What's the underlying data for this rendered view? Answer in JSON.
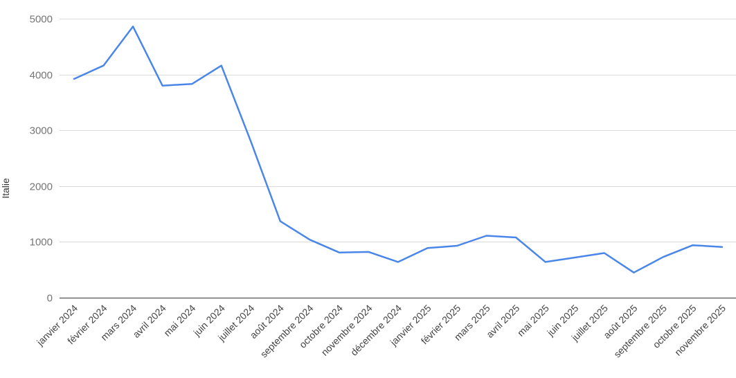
{
  "chart_data": {
    "type": "line",
    "title": "",
    "xlabel": "",
    "ylabel": "Italie",
    "ylim": [
      0,
      5000
    ],
    "yticks": [
      0,
      1000,
      2000,
      3000,
      4000,
      5000
    ],
    "grid": true,
    "legend": "none",
    "categories": [
      "janvier 2024",
      "février 2024",
      "mars 2024",
      "avril 2024",
      "mai 2024",
      "juin 2024",
      "juillet 2024",
      "août 2024",
      "septembre 2024",
      "octobre 2024",
      "novembre 2024",
      "décembre 2024",
      "janvier 2025",
      "février 2025",
      "mars 2025",
      "avril 2025",
      "mai 2025",
      "juin 2025",
      "juillet 2025",
      "août 2025",
      "septembre 2025",
      "octobre 2025",
      "novembre 2025"
    ],
    "series": [
      {
        "values": [
          3920,
          4160,
          4860,
          3800,
          3830,
          4160,
          2800,
          1370,
          1040,
          810,
          820,
          640,
          890,
          930,
          1110,
          1080,
          640,
          720,
          800,
          450,
          730,
          940,
          910
        ],
        "color": "#4a86e8"
      }
    ]
  },
  "colors": {
    "line": "#4a86e8",
    "grid": "#d9d9d9",
    "baseline": "#333333"
  }
}
